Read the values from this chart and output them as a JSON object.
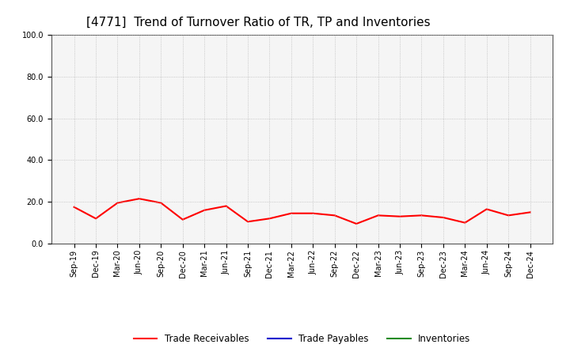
{
  "title": "[4771]  Trend of Turnover Ratio of TR, TP and Inventories",
  "x_labels": [
    "Sep-19",
    "Dec-19",
    "Mar-20",
    "Jun-20",
    "Sep-20",
    "Dec-20",
    "Mar-21",
    "Jun-21",
    "Sep-21",
    "Dec-21",
    "Mar-22",
    "Jun-22",
    "Sep-22",
    "Dec-22",
    "Mar-23",
    "Jun-23",
    "Sep-23",
    "Dec-23",
    "Mar-24",
    "Jun-24",
    "Sep-24",
    "Dec-24"
  ],
  "trade_receivables": [
    17.5,
    12.0,
    19.5,
    21.5,
    19.5,
    11.5,
    16.0,
    18.0,
    10.5,
    12.0,
    14.5,
    14.5,
    13.5,
    9.5,
    13.5,
    13.0,
    13.5,
    12.5,
    10.0,
    16.5,
    13.5,
    15.0
  ],
  "trade_payables": [
    null,
    null,
    null,
    null,
    null,
    null,
    null,
    null,
    null,
    null,
    null,
    null,
    null,
    null,
    null,
    null,
    null,
    null,
    null,
    null,
    null,
    null
  ],
  "inventories": [
    null,
    null,
    null,
    null,
    null,
    null,
    null,
    null,
    null,
    null,
    null,
    null,
    null,
    null,
    null,
    null,
    null,
    null,
    null,
    null,
    null,
    null
  ],
  "tr_color": "#FF0000",
  "tp_color": "#0000CD",
  "inv_color": "#228B22",
  "ylim": [
    0.0,
    100.0
  ],
  "yticks": [
    0.0,
    20.0,
    40.0,
    60.0,
    80.0,
    100.0
  ],
  "background_color": "#FFFFFF",
  "plot_bg_color": "#F5F5F5",
  "grid_color": "#BBBBBB",
  "title_fontsize": 11,
  "tick_fontsize": 7,
  "legend_labels": [
    "Trade Receivables",
    "Trade Payables",
    "Inventories"
  ],
  "legend_fontsize": 8.5
}
